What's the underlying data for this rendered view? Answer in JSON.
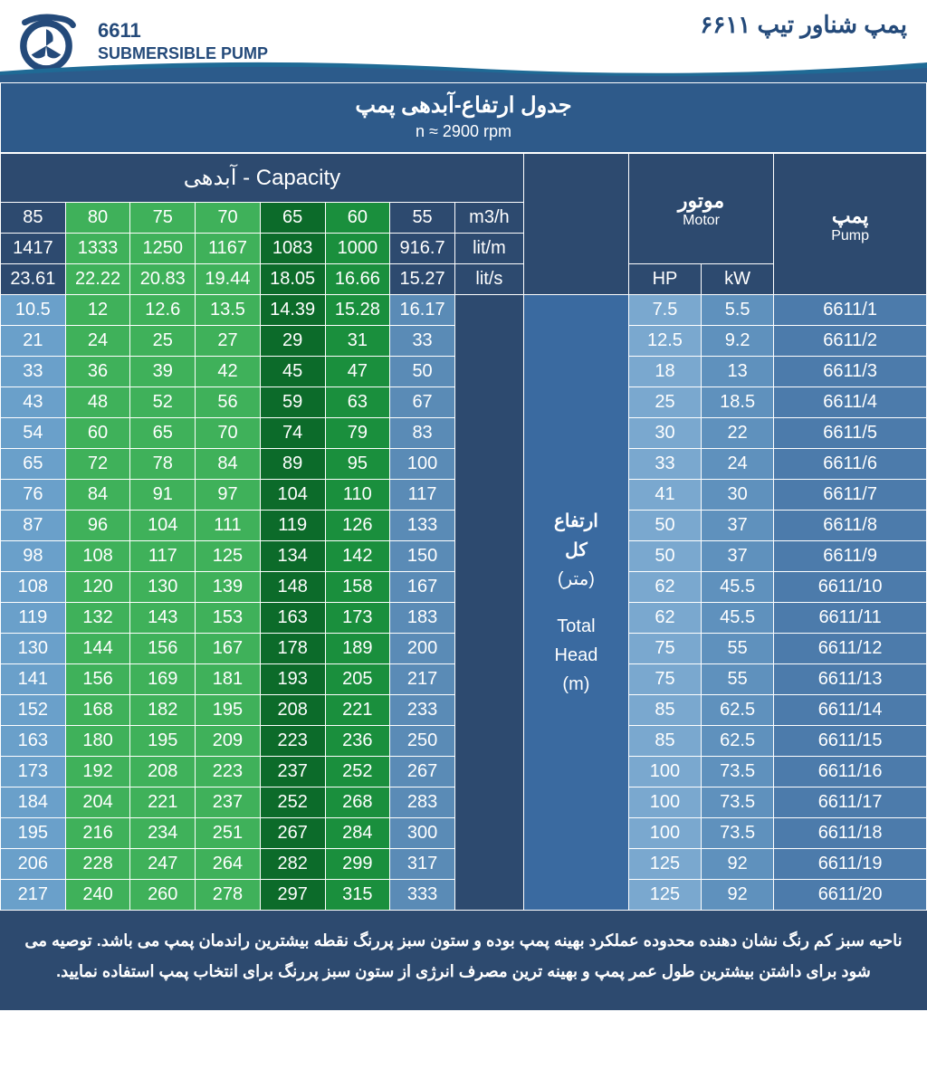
{
  "header": {
    "model": "6611",
    "subtitle": "SUBMERSIBLE PUMP",
    "fa_title": "پمپ شناور تیپ ۶۶۱۱"
  },
  "title": {
    "fa": "جدول ارتفاع-آبدهی پمپ",
    "rpm": "n ≈ 2900 rpm"
  },
  "colgroups": {
    "capacity": "آبدهی  -   Capacity",
    "motor_fa": "موتور",
    "motor_en": "Motor",
    "pump_fa": "پمپ",
    "pump_en": "Pump",
    "hp": "HP",
    "kw": "kW"
  },
  "capacity_headers": {
    "m3h": [
      "85",
      "80",
      "75",
      "70",
      "65",
      "60",
      "55"
    ],
    "litm": [
      "1417",
      "1333",
      "1250",
      "1167",
      "1083",
      "1000",
      "916.7"
    ],
    "lits": [
      "23.61",
      "22.22",
      "20.83",
      "19.44",
      "18.05",
      "16.66",
      "15.27"
    ],
    "units": [
      "m3/h",
      "lit/m",
      "lit/s"
    ]
  },
  "mid_label": {
    "fa1": "ارتفاع",
    "fa2": "کل",
    "fa3": "(متر)",
    "en1": "Total",
    "en2": "Head",
    "en3": "(m)"
  },
  "rows": [
    {
      "pump": "6611/1",
      "kw": "5.5",
      "hp": "7.5",
      "v": [
        "10.5",
        "12",
        "12.6",
        "13.5",
        "14.39",
        "15.28",
        "16.17"
      ]
    },
    {
      "pump": "6611/2",
      "kw": "9.2",
      "hp": "12.5",
      "v": [
        "21",
        "24",
        "25",
        "27",
        "29",
        "31",
        "33"
      ]
    },
    {
      "pump": "6611/3",
      "kw": "13",
      "hp": "18",
      "v": [
        "33",
        "36",
        "39",
        "42",
        "45",
        "47",
        "50"
      ]
    },
    {
      "pump": "6611/4",
      "kw": "18.5",
      "hp": "25",
      "v": [
        "43",
        "48",
        "52",
        "56",
        "59",
        "63",
        "67"
      ]
    },
    {
      "pump": "6611/5",
      "kw": "22",
      "hp": "30",
      "v": [
        "54",
        "60",
        "65",
        "70",
        "74",
        "79",
        "83"
      ]
    },
    {
      "pump": "6611/6",
      "kw": "24",
      "hp": "33",
      "v": [
        "65",
        "72",
        "78",
        "84",
        "89",
        "95",
        "100"
      ]
    },
    {
      "pump": "6611/7",
      "kw": "30",
      "hp": "41",
      "v": [
        "76",
        "84",
        "91",
        "97",
        "104",
        "110",
        "117"
      ]
    },
    {
      "pump": "6611/8",
      "kw": "37",
      "hp": "50",
      "v": [
        "87",
        "96",
        "104",
        "111",
        "119",
        "126",
        "133"
      ]
    },
    {
      "pump": "6611/9",
      "kw": "37",
      "hp": "50",
      "v": [
        "98",
        "108",
        "117",
        "125",
        "134",
        "142",
        "150"
      ]
    },
    {
      "pump": "6611/10",
      "kw": "45.5",
      "hp": "62",
      "v": [
        "108",
        "120",
        "130",
        "139",
        "148",
        "158",
        "167"
      ]
    },
    {
      "pump": "6611/11",
      "kw": "45.5",
      "hp": "62",
      "v": [
        "119",
        "132",
        "143",
        "153",
        "163",
        "173",
        "183"
      ]
    },
    {
      "pump": "6611/12",
      "kw": "55",
      "hp": "75",
      "v": [
        "130",
        "144",
        "156",
        "167",
        "178",
        "189",
        "200"
      ]
    },
    {
      "pump": "6611/13",
      "kw": "55",
      "hp": "75",
      "v": [
        "141",
        "156",
        "169",
        "181",
        "193",
        "205",
        "217"
      ]
    },
    {
      "pump": "6611/14",
      "kw": "62.5",
      "hp": "85",
      "v": [
        "152",
        "168",
        "182",
        "195",
        "208",
        "221",
        "233"
      ]
    },
    {
      "pump": "6611/15",
      "kw": "62.5",
      "hp": "85",
      "v": [
        "163",
        "180",
        "195",
        "209",
        "223",
        "236",
        "250"
      ]
    },
    {
      "pump": "6611/16",
      "kw": "73.5",
      "hp": "100",
      "v": [
        "173",
        "192",
        "208",
        "223",
        "237",
        "252",
        "267"
      ]
    },
    {
      "pump": "6611/17",
      "kw": "73.5",
      "hp": "100",
      "v": [
        "184",
        "204",
        "221",
        "237",
        "252",
        "268",
        "283"
      ]
    },
    {
      "pump": "6611/18",
      "kw": "73.5",
      "hp": "100",
      "v": [
        "195",
        "216",
        "234",
        "251",
        "267",
        "284",
        "300"
      ]
    },
    {
      "pump": "6611/19",
      "kw": "92",
      "hp": "125",
      "v": [
        "206",
        "228",
        "247",
        "264",
        "282",
        "299",
        "317"
      ]
    },
    {
      "pump": "6611/20",
      "kw": "92",
      "hp": "125",
      "v": [
        "217",
        "240",
        "260",
        "278",
        "297",
        "315",
        "333"
      ]
    }
  ],
  "colors": {
    "col_classes": [
      "c-lt85",
      "c-g1",
      "c-g1",
      "c-g1",
      "c-g3",
      "c-g2",
      "c-55"
    ],
    "hdr_col_classes": [
      "c-dark",
      "c-g1",
      "c-g1",
      "c-g1",
      "c-g3",
      "c-g2",
      "c-dark"
    ]
  },
  "footer": "ناحیه سبز کم رنگ نشان دهنده محدوده عملکرد بهینه پمپ بوده و ستون سبز پررنگ نقطه بیشترین راندمان پمپ می باشد. توصیه می شود برای داشتن بیشترین طول عمر پمپ و بهینه ترین مصرف انرژی از ستون سبز پررنگ برای انتخاب پمپ استفاده نمایید."
}
